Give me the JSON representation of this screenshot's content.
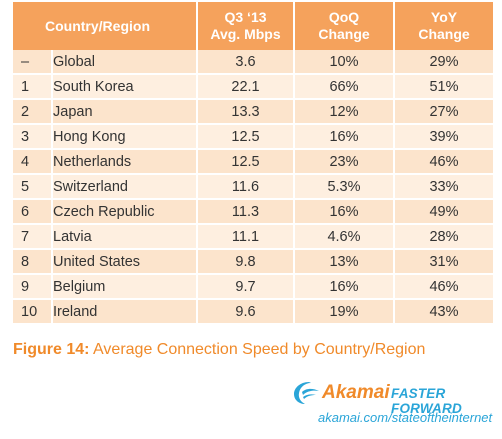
{
  "chart_data": {
    "type": "table",
    "title": "Average Connection Speed by Country/Region",
    "columns": [
      "",
      "Country/Region",
      "Q3 ‘13",
      "Avg. Mbps",
      "QoQ",
      "Change",
      "YoY",
      "Change"
    ],
    "headers": {
      "country": "Country/Region",
      "avg_line1": "Q3 ‘13",
      "avg_line2": "Avg. Mbps",
      "qoq_line1": "QoQ",
      "qoq_line2": "Change",
      "yoy_line1": "YoY",
      "yoy_line2": "Change"
    },
    "rows": [
      {
        "rank": "–",
        "name": "Global",
        "avg": "3.6",
        "qoq": "10%",
        "yoy": "29%"
      },
      {
        "rank": "1",
        "name": "South Korea",
        "avg": "22.1",
        "qoq": "66%",
        "yoy": "51%"
      },
      {
        "rank": "2",
        "name": "Japan",
        "avg": "13.3",
        "qoq": "12%",
        "yoy": "27%"
      },
      {
        "rank": "3",
        "name": "Hong Kong",
        "avg": "12.5",
        "qoq": "16%",
        "yoy": "39%"
      },
      {
        "rank": "4",
        "name": "Netherlands",
        "avg": "12.5",
        "qoq": "23%",
        "yoy": "46%"
      },
      {
        "rank": "5",
        "name": "Switzerland",
        "avg": "11.6",
        "qoq": "5.3%",
        "yoy": "33%"
      },
      {
        "rank": "6",
        "name": "Czech Republic",
        "avg": "11.3",
        "qoq": "16%",
        "yoy": "49%"
      },
      {
        "rank": "7",
        "name": "Latvia",
        "avg": "11.1",
        "qoq": "4.6%",
        "yoy": "28%"
      },
      {
        "rank": "8",
        "name": "United States",
        "avg": "9.8",
        "qoq": "13%",
        "yoy": "31%"
      },
      {
        "rank": "9",
        "name": "Belgium",
        "avg": "9.7",
        "qoq": "16%",
        "yoy": "46%"
      },
      {
        "rank": "10",
        "name": "Ireland",
        "avg": "9.6",
        "qoq": "19%",
        "yoy": "43%"
      }
    ]
  },
  "caption": {
    "label": "Figure 14:",
    "text": "Average Connection Speed by Country/Region"
  },
  "logo": {
    "name": "Akamai",
    "tagline": "FASTER FORWARD",
    "icon": "akamai-wave-icon"
  },
  "url": "akamai.com/stateoftheinternet",
  "colors": {
    "header_bg": "#f5a25c",
    "row_odd": "#fce4cc",
    "row_even": "#feefe0",
    "caption": "#f08a2a",
    "logo_orange": "#f08a2a",
    "logo_blue": "#2aa5d8"
  }
}
